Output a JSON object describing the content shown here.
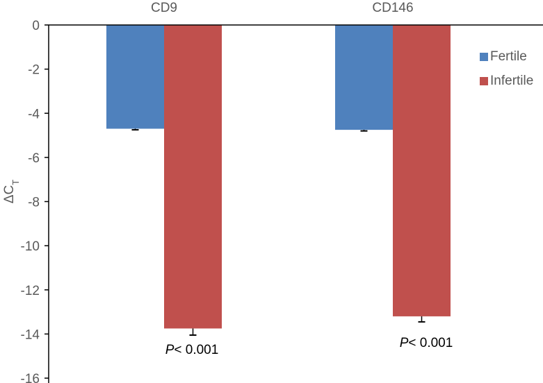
{
  "chart_data": {
    "type": "bar",
    "categories": [
      "CD9",
      "CD146"
    ],
    "series": [
      {
        "name": "Fertile",
        "values": [
          -4.7,
          -4.75
        ],
        "errors": [
          0.05,
          0.05
        ],
        "color": "#4F81BD"
      },
      {
        "name": "Infertile",
        "values": [
          -13.75,
          -13.2
        ],
        "errors": [
          0.3,
          0.25
        ],
        "color": "#C0504D"
      }
    ],
    "ylabel": "ΔC",
    "ylabel_subscript": "T",
    "ylim": [
      -16,
      0
    ],
    "yticks": [
      0,
      -2,
      -4,
      -6,
      -8,
      -10,
      -12,
      -14,
      -16
    ],
    "grid": false,
    "legend_position": "right",
    "category_axis_position": "top",
    "annotations": [
      {
        "category": "CD9",
        "italic": "P",
        "text": "< 0.001"
      },
      {
        "category": "CD146",
        "italic": "P",
        "text": "< 0.001"
      }
    ]
  }
}
